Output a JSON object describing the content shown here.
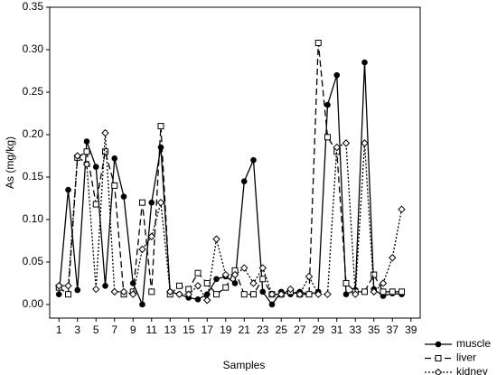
{
  "chart_data": {
    "type": "line",
    "xlabel": "Samples",
    "ylabel": "As (mg/kg)",
    "x": [
      1,
      2,
      3,
      4,
      5,
      6,
      7,
      8,
      9,
      10,
      11,
      12,
      13,
      14,
      15,
      16,
      17,
      18,
      19,
      20,
      21,
      22,
      23,
      24,
      25,
      26,
      27,
      28,
      29,
      30,
      31,
      32,
      33,
      34,
      35,
      36,
      37,
      38
    ],
    "series": [
      {
        "name": "muscle",
        "color": "#000000",
        "values": [
          0.012,
          0.135,
          0.017,
          0.192,
          0.162,
          0.022,
          0.172,
          0.127,
          0.025,
          0.0,
          0.12,
          0.185,
          0.015,
          0.012,
          0.008,
          0.006,
          0.012,
          0.03,
          0.033,
          0.025,
          0.145,
          0.17,
          0.015,
          0.0,
          0.015,
          0.012,
          0.015,
          0.012,
          0.015,
          0.235,
          0.27,
          0.012,
          0.017,
          0.285,
          0.018,
          0.01,
          0.013,
          0.012
        ]
      },
      {
        "name": "liver",
        "color": "#000000",
        "values": [
          0.02,
          0.012,
          0.173,
          0.18,
          0.118,
          0.18,
          0.14,
          0.012,
          0.015,
          0.12,
          0.015,
          0.21,
          0.012,
          0.022,
          0.018,
          0.037,
          0.025,
          0.012,
          0.02,
          0.04,
          0.012,
          0.012,
          0.03,
          0.012,
          0.012,
          0.015,
          0.012,
          0.012,
          0.308,
          0.197,
          0.18,
          0.025,
          0.015,
          0.015,
          0.035,
          0.015,
          0.015,
          0.015
        ]
      },
      {
        "name": "kidney",
        "color": "#000000",
        "values": [
          0.022,
          0.022,
          0.175,
          0.165,
          0.018,
          0.202,
          0.015,
          0.015,
          0.012,
          0.065,
          0.08,
          0.12,
          0.015,
          0.012,
          0.012,
          0.022,
          0.005,
          0.077,
          0.035,
          0.035,
          0.043,
          0.025,
          0.043,
          0.012,
          0.012,
          0.018,
          0.012,
          0.033,
          0.012,
          0.012,
          0.185,
          0.19,
          0.012,
          0.19,
          0.015,
          0.025,
          0.055,
          0.112
        ]
      }
    ],
    "xlim": [
      0,
      40
    ],
    "xticks": [
      1,
      3,
      5,
      7,
      9,
      11,
      13,
      15,
      17,
      19,
      21,
      23,
      25,
      27,
      29,
      31,
      33,
      35,
      37,
      39
    ],
    "ylim": [
      -0.016,
      0.35
    ],
    "yticks": [
      {
        "value": 0,
        "label": "0.00"
      },
      {
        "value": 0.05,
        "label": "0.05"
      },
      {
        "value": 0.1,
        "label": "0.10"
      },
      {
        "value": 0.15,
        "label": "0.15"
      },
      {
        "value": 0.2,
        "label": "0.20"
      },
      {
        "value": 0.25,
        "label": "0.25"
      },
      {
        "value": 0.3,
        "label": "0.30"
      },
      {
        "value": 0.35,
        "label": "0.35"
      }
    ],
    "grid": false,
    "legend": "bottom-right"
  }
}
